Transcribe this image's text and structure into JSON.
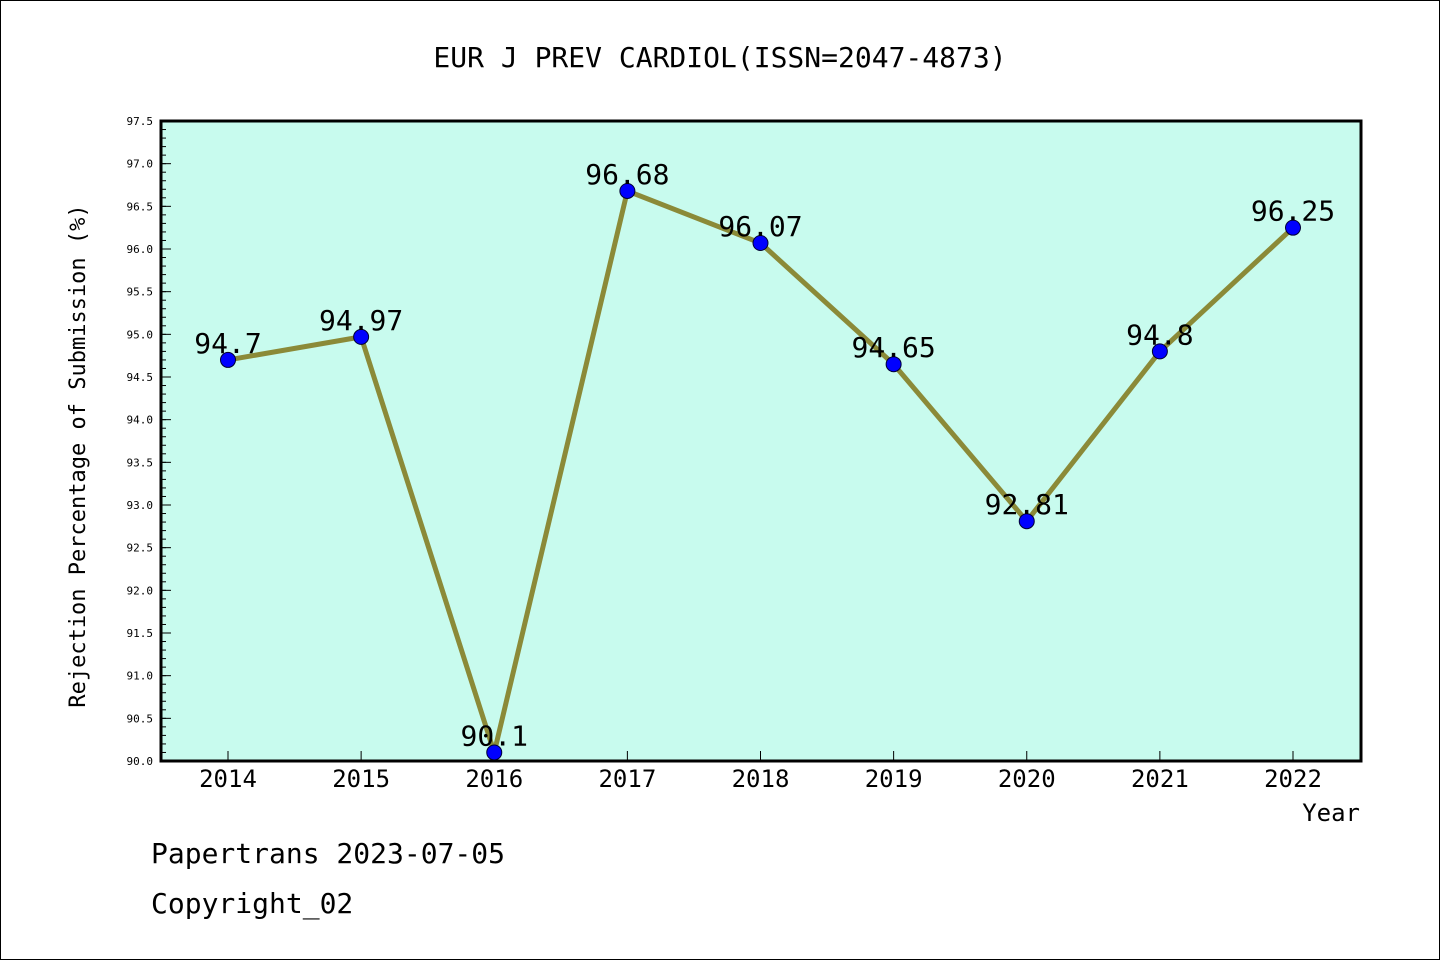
{
  "footer": {
    "line1": "Papertrans 2023-07-05",
    "line2": "Copyright_02"
  },
  "chart_data": {
    "type": "line",
    "title": "EUR J PREV CARDIOL(ISSN=2047-4873)",
    "xlabel": "Year",
    "ylabel": "Rejection Percentage of Submission (%)",
    "categories": [
      "2014",
      "2015",
      "2016",
      "2017",
      "2018",
      "2019",
      "2020",
      "2021",
      "2022"
    ],
    "series": [
      {
        "values": [
          94.7,
          94.97,
          90.1,
          96.68,
          96.07,
          94.65,
          92.81,
          94.8,
          96.25
        ],
        "labels": [
          "94.7",
          "94.97",
          "90.1",
          "96.68",
          "96.07",
          "94.65",
          "92.81",
          "94.8",
          "96.25"
        ]
      }
    ],
    "ylim": [
      90.0,
      97.5
    ],
    "yticks": [
      "90.0",
      "90.5",
      "91.0",
      "91.5",
      "92.0",
      "92.5",
      "93.0",
      "93.5",
      "94.0",
      "94.5",
      "95.0",
      "95.5",
      "96.0",
      "96.5",
      "97.0",
      "97.5"
    ],
    "grid": false,
    "legend": "none",
    "colors": {
      "plot_background": "#c8fbee",
      "line": "#8b8a38",
      "marker": "#0000ff",
      "axes": "#000000"
    }
  }
}
